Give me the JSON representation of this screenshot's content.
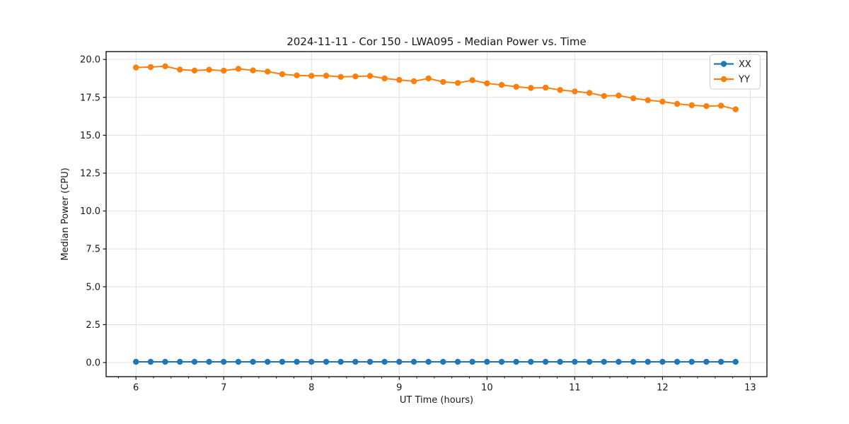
{
  "chart_data": {
    "type": "line",
    "title": "2024-11-11 - Cor 150 - LWA095 - Median Power vs. Time",
    "xlabel": "UT Time (hours)",
    "ylabel": "Median Power (CPU)",
    "xlim": [
      5.66,
      13.19
    ],
    "ylim": [
      -0.93,
      20.52
    ],
    "x_ticks": [
      6,
      7,
      8,
      9,
      10,
      11,
      12,
      13
    ],
    "x_minor_tick_step": 0.2,
    "y_ticks": [
      0.0,
      2.5,
      5.0,
      7.5,
      10.0,
      12.5,
      15.0,
      17.5,
      20.0
    ],
    "grid": true,
    "grid_color": "#e0e0e0",
    "frame_color": "#000000",
    "legend_position": "upper right",
    "x": [
      6.0,
      6.167,
      6.333,
      6.5,
      6.667,
      6.833,
      7.0,
      7.167,
      7.333,
      7.5,
      7.667,
      7.833,
      8.0,
      8.167,
      8.333,
      8.5,
      8.667,
      8.833,
      9.0,
      9.167,
      9.333,
      9.5,
      9.667,
      9.833,
      10.0,
      10.167,
      10.333,
      10.5,
      10.667,
      10.833,
      11.0,
      11.167,
      11.333,
      11.5,
      11.667,
      11.833,
      12.0,
      12.167,
      12.333,
      12.5,
      12.667,
      12.833
    ],
    "series": [
      {
        "name": "XX",
        "color": "#1f77b4",
        "values": [
          0.05,
          0.05,
          0.05,
          0.05,
          0.05,
          0.05,
          0.05,
          0.05,
          0.05,
          0.05,
          0.05,
          0.05,
          0.05,
          0.05,
          0.05,
          0.05,
          0.05,
          0.05,
          0.05,
          0.05,
          0.05,
          0.05,
          0.05,
          0.05,
          0.05,
          0.05,
          0.05,
          0.05,
          0.05,
          0.05,
          0.05,
          0.05,
          0.05,
          0.05,
          0.05,
          0.05,
          0.05,
          0.05,
          0.05,
          0.05,
          0.05,
          0.05
        ]
      },
      {
        "name": "YY",
        "color": "#ff7f0e",
        "values": [
          19.47,
          19.5,
          19.55,
          19.33,
          19.27,
          19.32,
          19.26,
          19.38,
          19.28,
          19.2,
          19.03,
          18.95,
          18.92,
          18.93,
          18.85,
          18.88,
          18.91,
          18.75,
          18.65,
          18.56,
          18.75,
          18.52,
          18.45,
          18.63,
          18.42,
          18.32,
          18.2,
          18.12,
          18.14,
          17.99,
          17.89,
          17.79,
          17.59,
          17.62,
          17.44,
          17.31,
          17.22,
          17.07,
          16.98,
          16.92,
          16.95,
          16.71
        ]
      }
    ]
  }
}
